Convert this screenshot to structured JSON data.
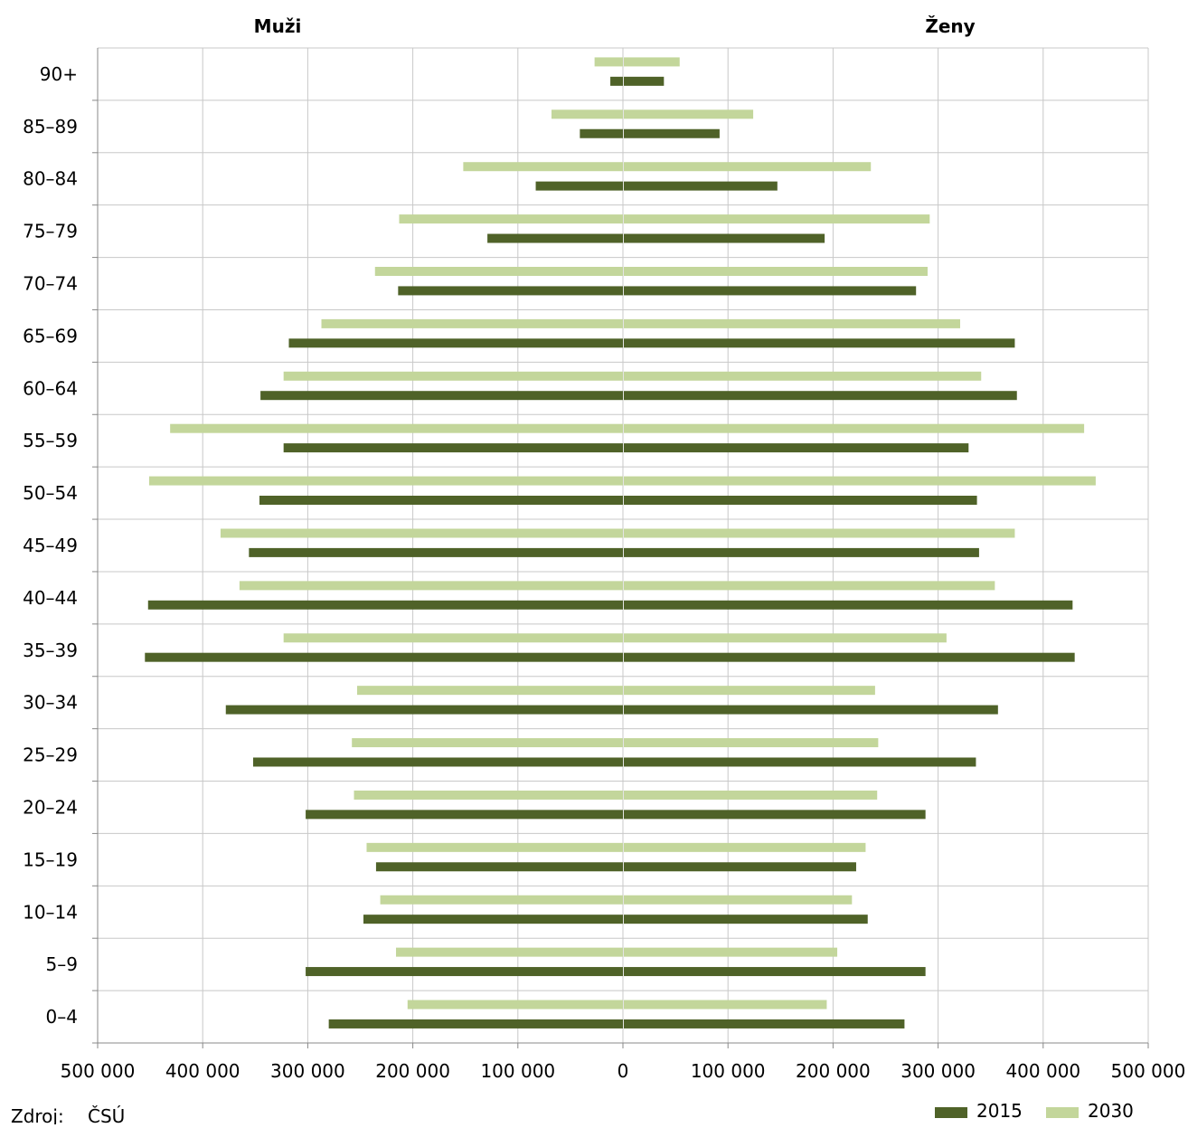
{
  "chart_data": {
    "type": "bar",
    "orientation": "horizontal",
    "layout": "population-pyramid",
    "panel_titles": {
      "left": "Muži",
      "right": "Ženy"
    },
    "categories": [
      "0–4",
      "5–9",
      "10–14",
      "15–19",
      "20–24",
      "25–29",
      "30–34",
      "35–39",
      "40–44",
      "45–49",
      "50–54",
      "55–59",
      "60–64",
      "65–69",
      "70–74",
      "75–79",
      "80–84",
      "85–89",
      "90+"
    ],
    "series": [
      {
        "name": "2015",
        "color": "#4f6228",
        "men": [
          280000,
          302000,
          247000,
          235000,
          302000,
          352000,
          378000,
          455000,
          452000,
          356000,
          346000,
          323000,
          345000,
          318000,
          214000,
          129000,
          83000,
          41000,
          12000
        ],
        "women": [
          268000,
          288000,
          233000,
          222000,
          288000,
          336000,
          357000,
          430000,
          428000,
          339000,
          337000,
          329000,
          375000,
          373000,
          279000,
          192000,
          147000,
          92000,
          39000
        ]
      },
      {
        "name": "2030",
        "color": "#c3d69b",
        "men": [
          205000,
          216000,
          231000,
          244000,
          256000,
          258000,
          253000,
          323000,
          365000,
          383000,
          451000,
          431000,
          323000,
          287000,
          236000,
          213000,
          152000,
          68000,
          27000
        ],
        "women": [
          194000,
          204000,
          218000,
          231000,
          242000,
          243000,
          240000,
          308000,
          354000,
          373000,
          450000,
          439000,
          341000,
          321000,
          290000,
          292000,
          236000,
          124000,
          54000
        ]
      }
    ],
    "x_range": [
      -500000,
      500000
    ],
    "x_ticks": [
      -500000,
      -400000,
      -300000,
      -200000,
      -100000,
      0,
      100000,
      200000,
      300000,
      400000,
      500000
    ],
    "x_tick_labels": [
      "500 000",
      "400 000",
      "300 000",
      "200 000",
      "100 000",
      "0",
      "100 000",
      "200 000",
      "300 000",
      "400 000",
      "500 000"
    ],
    "grid": true,
    "legend_position": "bottom-right",
    "source_label": "Zdroj:",
    "source_value": "ČSÚ"
  }
}
